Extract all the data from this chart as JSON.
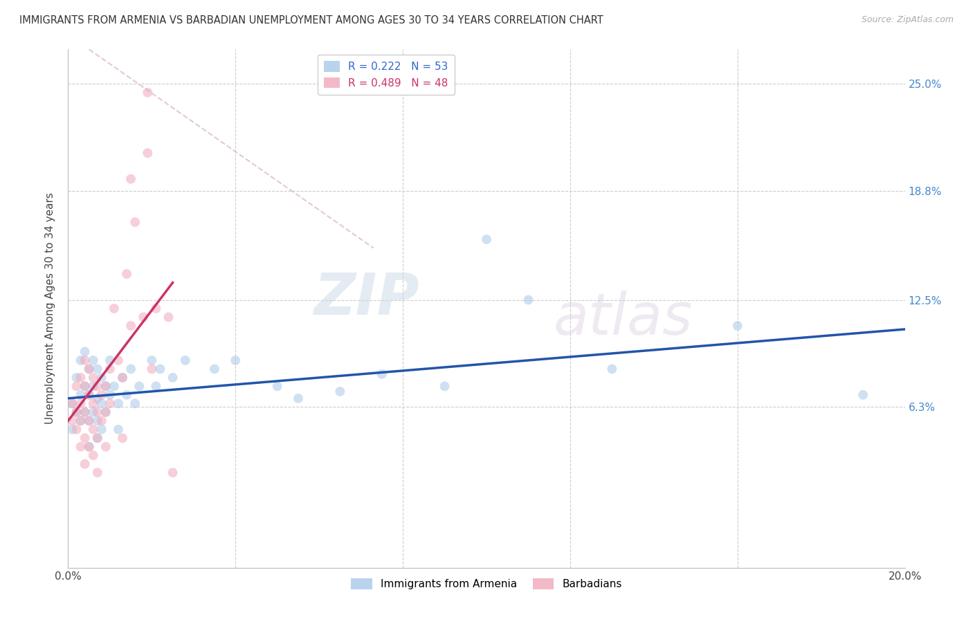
{
  "title": "IMMIGRANTS FROM ARMENIA VS BARBADIAN UNEMPLOYMENT AMONG AGES 30 TO 34 YEARS CORRELATION CHART",
  "source": "Source: ZipAtlas.com",
  "ylabel": "Unemployment Among Ages 30 to 34 years",
  "xlim": [
    0.0,
    0.2
  ],
  "ylim": [
    -0.03,
    0.27
  ],
  "yticks": [
    0.063,
    0.125,
    0.188,
    0.25
  ],
  "ytick_labels": [
    "6.3%",
    "12.5%",
    "18.8%",
    "25.0%"
  ],
  "xticks": [
    0.0,
    0.04,
    0.08,
    0.12,
    0.16,
    0.2
  ],
  "xtick_labels": [
    "0.0%",
    "",
    "",
    "",
    "",
    "20.0%"
  ],
  "legend1_blue_label": "R = 0.222   N = 53",
  "legend1_pink_label": "R = 0.489   N = 48",
  "legend2_blue_label": "Immigrants from Armenia",
  "legend2_pink_label": "Barbadians",
  "watermark_zip": "ZIP",
  "watermark_atlas": "atlas",
  "background_color": "#ffffff",
  "grid_color": "#cccccc",
  "blue_fill": "#a8c8e8",
  "pink_fill": "#f0a8b8",
  "blue_line_color": "#2255aa",
  "pink_line_color": "#cc3366",
  "diag_line_color": "#ddbbcc",
  "scatter_alpha": 0.55,
  "scatter_size": 100,
  "blue_scatter": [
    [
      0.001,
      0.065
    ],
    [
      0.001,
      0.05
    ],
    [
      0.002,
      0.08
    ],
    [
      0.002,
      0.06
    ],
    [
      0.003,
      0.09
    ],
    [
      0.003,
      0.07
    ],
    [
      0.003,
      0.055
    ],
    [
      0.004,
      0.095
    ],
    [
      0.004,
      0.075
    ],
    [
      0.004,
      0.06
    ],
    [
      0.005,
      0.085
    ],
    [
      0.005,
      0.07
    ],
    [
      0.005,
      0.055
    ],
    [
      0.005,
      0.04
    ],
    [
      0.006,
      0.09
    ],
    [
      0.006,
      0.075
    ],
    [
      0.006,
      0.06
    ],
    [
      0.007,
      0.085
    ],
    [
      0.007,
      0.068
    ],
    [
      0.007,
      0.055
    ],
    [
      0.007,
      0.045
    ],
    [
      0.008,
      0.08
    ],
    [
      0.008,
      0.065
    ],
    [
      0.008,
      0.05
    ],
    [
      0.009,
      0.075
    ],
    [
      0.009,
      0.06
    ],
    [
      0.01,
      0.09
    ],
    [
      0.01,
      0.07
    ],
    [
      0.011,
      0.075
    ],
    [
      0.012,
      0.065
    ],
    [
      0.012,
      0.05
    ],
    [
      0.013,
      0.08
    ],
    [
      0.014,
      0.07
    ],
    [
      0.015,
      0.085
    ],
    [
      0.016,
      0.065
    ],
    [
      0.017,
      0.075
    ],
    [
      0.02,
      0.09
    ],
    [
      0.021,
      0.075
    ],
    [
      0.022,
      0.085
    ],
    [
      0.025,
      0.08
    ],
    [
      0.028,
      0.09
    ],
    [
      0.035,
      0.085
    ],
    [
      0.04,
      0.09
    ],
    [
      0.05,
      0.075
    ],
    [
      0.055,
      0.068
    ],
    [
      0.065,
      0.072
    ],
    [
      0.075,
      0.082
    ],
    [
      0.09,
      0.075
    ],
    [
      0.1,
      0.16
    ],
    [
      0.11,
      0.125
    ],
    [
      0.13,
      0.085
    ],
    [
      0.16,
      0.11
    ],
    [
      0.19,
      0.07
    ]
  ],
  "pink_scatter": [
    [
      0.001,
      0.065
    ],
    [
      0.001,
      0.055
    ],
    [
      0.002,
      0.075
    ],
    [
      0.002,
      0.06
    ],
    [
      0.002,
      0.05
    ],
    [
      0.003,
      0.08
    ],
    [
      0.003,
      0.065
    ],
    [
      0.003,
      0.055
    ],
    [
      0.003,
      0.04
    ],
    [
      0.004,
      0.09
    ],
    [
      0.004,
      0.075
    ],
    [
      0.004,
      0.06
    ],
    [
      0.004,
      0.045
    ],
    [
      0.004,
      0.03
    ],
    [
      0.005,
      0.085
    ],
    [
      0.005,
      0.07
    ],
    [
      0.005,
      0.055
    ],
    [
      0.005,
      0.04
    ],
    [
      0.006,
      0.08
    ],
    [
      0.006,
      0.065
    ],
    [
      0.006,
      0.05
    ],
    [
      0.006,
      0.035
    ],
    [
      0.007,
      0.075
    ],
    [
      0.007,
      0.06
    ],
    [
      0.007,
      0.045
    ],
    [
      0.007,
      0.025
    ],
    [
      0.008,
      0.07
    ],
    [
      0.008,
      0.055
    ],
    [
      0.009,
      0.075
    ],
    [
      0.009,
      0.06
    ],
    [
      0.009,
      0.04
    ],
    [
      0.01,
      0.085
    ],
    [
      0.01,
      0.065
    ],
    [
      0.011,
      0.12
    ],
    [
      0.012,
      0.09
    ],
    [
      0.013,
      0.08
    ],
    [
      0.013,
      0.045
    ],
    [
      0.014,
      0.14
    ],
    [
      0.015,
      0.195
    ],
    [
      0.015,
      0.11
    ],
    [
      0.016,
      0.17
    ],
    [
      0.018,
      0.115
    ],
    [
      0.019,
      0.245
    ],
    [
      0.019,
      0.21
    ],
    [
      0.02,
      0.085
    ],
    [
      0.021,
      0.12
    ],
    [
      0.024,
      0.115
    ],
    [
      0.025,
      0.025
    ]
  ],
  "blue_line": {
    "x0": 0.0,
    "y0": 0.068,
    "x1": 0.2,
    "y1": 0.108
  },
  "pink_line": {
    "x0": 0.0,
    "y0": 0.055,
    "x1": 0.025,
    "y1": 0.135
  },
  "diag_line": {
    "x0": 0.005,
    "y0": 0.27,
    "x1": 0.073,
    "y1": 0.155
  }
}
